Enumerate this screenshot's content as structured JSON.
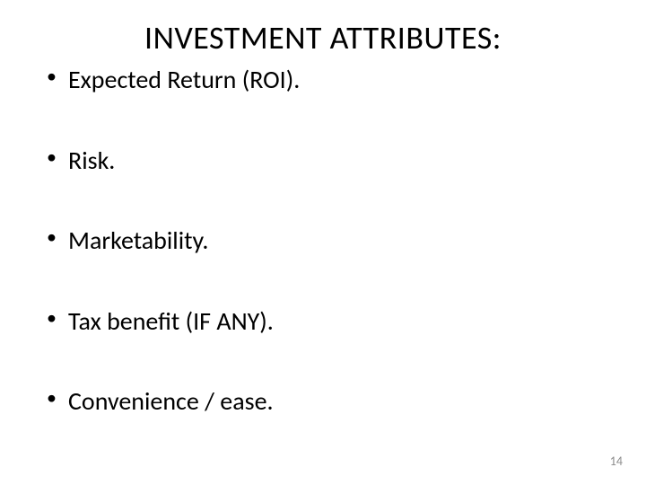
{
  "slide": {
    "title": "INVESTMENT ATTRIBUTES:",
    "title_fontsize": 36,
    "title_color": "#000000",
    "bullets": [
      {
        "text": "Expected Return (ROI)."
      },
      {
        "text": "Risk."
      },
      {
        "text": "Marketability."
      },
      {
        "text": "Tax benefit (IF ANY)."
      },
      {
        "text": "Convenience / ease."
      }
    ],
    "bullet_fontsize": 28,
    "bullet_color": "#000000",
    "bullet_spacing": 56,
    "page_number": "14",
    "page_number_color": "#8b8b8b",
    "page_number_fontsize": 14,
    "background_color": "#ffffff",
    "font_family": "Calibri"
  }
}
